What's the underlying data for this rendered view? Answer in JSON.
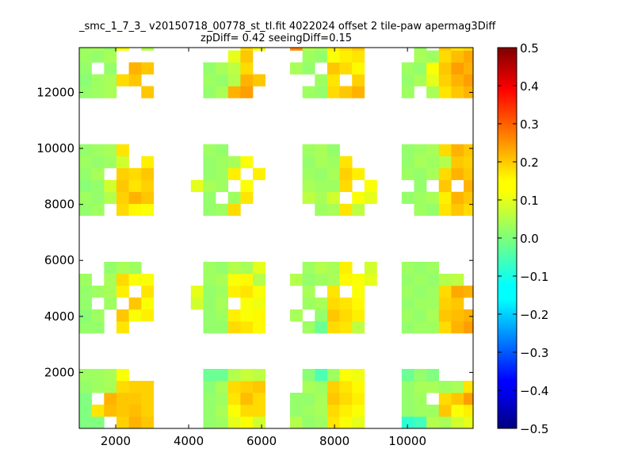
{
  "chart_data": {
    "type": "heatmap",
    "title_lines": [
      "_smc_1_7_3_ v20150718_00778_st_tl.fit 4022024 offset 2 tile-paw apermag3Diff",
      "zpDiff= 0.42 seeingDiff=0.15"
    ],
    "xlim": [
      1000,
      11800
    ],
    "ylim": [
      0,
      13600
    ],
    "x_ticks": [
      2000,
      4000,
      6000,
      8000,
      10000
    ],
    "y_ticks": [
      2000,
      4000,
      6000,
      8000,
      10000,
      12000
    ],
    "colorbar": {
      "range": [
        -0.5,
        0.5
      ],
      "colormap": "jet",
      "ticks": [
        -0.5,
        -0.4,
        -0.3,
        -0.2,
        -0.1,
        0.0,
        0.1,
        0.2,
        0.3,
        0.4,
        0.5
      ],
      "tick_labels": [
        "−0.5",
        "−0.4",
        "−0.3",
        "−0.2",
        "−0.1",
        "0.0",
        "0.1",
        "0.2",
        "0.3",
        "0.4",
        "0.5"
      ]
    },
    "cell_width": 340,
    "cell_height": 425,
    "grid": false,
    "blocks": [
      {
        "x0": 1000,
        "y0": 0,
        "cols": 6,
        "rows": 5,
        "values": [
          [
            0.0,
            0.0,
            null,
            0.17,
            0.2,
            0.18
          ],
          [
            0.0,
            0.15,
            0.19,
            0.18,
            0.19,
            0.17
          ],
          [
            0.0,
            null,
            0.2,
            0.18,
            0.18,
            0.17
          ],
          [
            0.02,
            0.03,
            0.04,
            0.16,
            0.17,
            0.17
          ],
          [
            0.03,
            0.03,
            0.04,
            0.12,
            null,
            null
          ]
        ]
      },
      {
        "x0": 4060,
        "y0": 0,
        "cols": 6,
        "rows": 5,
        "values": [
          [
            null,
            0.02,
            0.03,
            0.1,
            0.12,
            0.08
          ],
          [
            null,
            0.02,
            0.04,
            0.12,
            0.16,
            0.16
          ],
          [
            null,
            0.02,
            0.03,
            0.15,
            0.19,
            0.16
          ],
          [
            null,
            0.01,
            0.04,
            0.16,
            0.17,
            0.18
          ],
          [
            null,
            -0.02,
            -0.02,
            0.05,
            0.07,
            0.06
          ]
        ]
      },
      {
        "x0": 6780,
        "y0": 0,
        "cols": 6,
        "rows": 5,
        "values": [
          [
            0.05,
            0.02,
            0.03,
            0.15,
            0.12,
            0.1
          ],
          [
            0.02,
            0.03,
            0.04,
            0.16,
            0.14,
            0.12
          ],
          [
            0.02,
            0.02,
            0.04,
            0.18,
            0.16,
            0.14
          ],
          [
            null,
            0.04,
            0.03,
            0.17,
            0.15,
            0.13
          ],
          [
            null,
            0.01,
            -0.05,
            0.03,
            0.12,
            0.11
          ]
        ]
      },
      {
        "x0": 9840,
        "y0": 0,
        "cols": 6,
        "rows": 5,
        "values": [
          [
            -0.08,
            -0.06,
            0.05,
            0.04,
            0.08,
            0.1
          ],
          [
            0.02,
            0.03,
            0.03,
            0.18,
            0.12,
            0.14
          ],
          [
            0.02,
            0.03,
            null,
            0.16,
            0.18,
            0.22
          ],
          [
            0.02,
            0.04,
            0.04,
            0.03,
            0.04,
            0.15
          ],
          [
            -0.02,
            0.02,
            0.0,
            null,
            null,
            null
          ]
        ]
      },
      {
        "x0": 1000,
        "y0": 3400,
        "cols": 6,
        "rows": 6,
        "values": [
          [
            0.02,
            0.02,
            null,
            0.15,
            null,
            null
          ],
          [
            0.01,
            0.03,
            null,
            0.18,
            0.12,
            0.14
          ],
          [
            0.02,
            null,
            0.03,
            null,
            0.18,
            0.12
          ],
          [
            0.02,
            0.03,
            0.04,
            0.14,
            null,
            0.15
          ],
          [
            0.03,
            null,
            0.04,
            0.16,
            0.12,
            0.12
          ],
          [
            null,
            null,
            0.02,
            0.04,
            0.03,
            null
          ]
        ]
      },
      {
        "x0": 3720,
        "y0": 3400,
        "cols": 7,
        "rows": 6,
        "values": [
          [
            null,
            null,
            0.02,
            0.02,
            0.16,
            0.15,
            0.13
          ],
          [
            null,
            null,
            0.02,
            0.03,
            0.14,
            0.12,
            0.13
          ],
          [
            null,
            0.08,
            0.02,
            0.04,
            null,
            0.12,
            0.11
          ],
          [
            null,
            0.1,
            0.02,
            0.03,
            0.14,
            0.15,
            0.12
          ],
          [
            null,
            null,
            0.03,
            0.04,
            0.12,
            0.13,
            0.05
          ],
          [
            null,
            null,
            0.03,
            0.02,
            0.05,
            0.04,
            0.1
          ]
        ]
      },
      {
        "x0": 6780,
        "y0": 3400,
        "cols": 7,
        "rows": 6,
        "values": [
          [
            null,
            0.03,
            -0.02,
            0.16,
            0.15,
            0.06,
            null
          ],
          [
            0.04,
            null,
            0.02,
            0.18,
            0.16,
            0.14,
            null
          ],
          [
            null,
            0.03,
            0.04,
            0.16,
            0.15,
            0.13,
            null
          ],
          [
            null,
            0.04,
            null,
            0.15,
            null,
            0.12,
            null
          ],
          [
            0.05,
            0.02,
            0.03,
            0.04,
            0.13,
            0.12,
            0.1
          ],
          [
            null,
            0.03,
            0.05,
            0.04,
            0.14,
            null,
            0.08
          ]
        ]
      },
      {
        "x0": 9840,
        "y0": 3400,
        "cols": 6,
        "rows": 6,
        "values": [
          [
            0.02,
            0.03,
            0.03,
            0.16,
            0.2,
            0.22
          ],
          [
            0.03,
            0.02,
            0.04,
            0.18,
            0.19,
            0.2
          ],
          [
            0.02,
            0.03,
            0.03,
            0.17,
            0.18,
            null
          ],
          [
            0.03,
            0.02,
            0.03,
            0.16,
            0.21,
            0.2
          ],
          [
            0.02,
            0.03,
            0.02,
            0.05,
            0.06,
            null
          ],
          [
            0.03,
            0.02,
            0.03,
            null,
            null,
            null
          ]
        ]
      },
      {
        "x0": 1000,
        "y0": 7600,
        "cols": 6,
        "rows": 6,
        "values": [
          [
            0.02,
            0.03,
            null,
            0.16,
            0.13,
            0.12
          ],
          [
            0.03,
            0.02,
            0.05,
            0.17,
            0.2,
            0.18
          ],
          [
            0.01,
            0.02,
            0.08,
            0.18,
            0.15,
            0.17
          ],
          [
            0.02,
            0.04,
            null,
            0.17,
            0.16,
            0.18
          ],
          [
            0.03,
            0.02,
            0.03,
            0.08,
            null,
            0.14
          ],
          [
            0.02,
            0.03,
            0.04,
            0.15,
            null,
            null
          ]
        ]
      },
      {
        "x0": 3720,
        "y0": 7600,
        "cols": 7,
        "rows": 6,
        "values": [
          [
            null,
            null,
            0.02,
            0.03,
            0.16,
            null,
            null
          ],
          [
            null,
            null,
            0.02,
            null,
            0.03,
            0.15,
            null
          ],
          [
            null,
            0.1,
            0.04,
            0.03,
            null,
            0.12,
            null
          ],
          [
            null,
            null,
            0.02,
            0.03,
            0.14,
            null,
            0.14
          ],
          [
            null,
            null,
            0.02,
            0.03,
            0.04,
            0.12,
            null
          ],
          [
            null,
            null,
            0.03,
            0.02,
            null,
            null,
            null
          ]
        ]
      },
      {
        "x0": 6780,
        "y0": 7600,
        "cols": 7,
        "rows": 6,
        "values": [
          [
            null,
            null,
            0.03,
            0.04,
            0.15,
            0.06,
            null
          ],
          [
            null,
            0.06,
            0.04,
            0.08,
            null,
            0.12,
            0.1
          ],
          [
            null,
            0.04,
            0.03,
            0.03,
            0.16,
            null,
            0.12
          ],
          [
            null,
            0.03,
            0.02,
            0.04,
            0.17,
            0.14,
            null
          ],
          [
            null,
            0.02,
            0.04,
            0.03,
            0.15,
            null,
            null
          ],
          [
            null,
            0.03,
            0.04,
            0.02,
            null,
            null,
            null
          ]
        ]
      },
      {
        "x0": 9840,
        "y0": 7600,
        "cols": 6,
        "rows": 6,
        "values": [
          [
            null,
            0.03,
            0.02,
            0.15,
            0.18,
            0.16
          ],
          [
            0.02,
            0.03,
            0.04,
            0.14,
            0.2,
            0.18
          ],
          [
            null,
            0.02,
            null,
            0.18,
            null,
            0.2
          ],
          [
            0.03,
            0.02,
            0.04,
            0.16,
            0.2,
            0.18
          ],
          [
            0.02,
            0.04,
            0.03,
            0.05,
            0.18,
            0.17
          ],
          [
            0.02,
            0.03,
            0.04,
            0.16,
            0.2,
            0.18
          ]
        ]
      },
      {
        "x0": 1000,
        "y0": 11800,
        "cols": 6,
        "rows": 5,
        "values": [
          [
            0.02,
            0.03,
            0.04,
            null,
            null,
            0.18
          ],
          [
            0.01,
            0.03,
            0.04,
            0.16,
            0.18,
            null
          ],
          [
            0.02,
            null,
            0.02,
            null,
            0.2,
            0.18
          ],
          [
            0.03,
            0.02,
            0.04,
            null,
            null,
            null
          ],
          [
            0.03,
            0.04,
            0.02,
            0.12,
            null,
            0.05
          ]
        ]
      },
      {
        "x0": 4060,
        "y0": 11800,
        "cols": 6,
        "rows": 5,
        "values": [
          [
            null,
            0.02,
            0.04,
            0.2,
            0.22,
            null
          ],
          [
            null,
            0.03,
            0.02,
            0.05,
            0.2,
            0.18
          ],
          [
            null,
            0.02,
            0.04,
            0.06,
            0.16,
            null
          ],
          [
            null,
            null,
            null,
            0.1,
            0.18,
            null
          ],
          [
            null,
            null,
            null,
            null,
            0.16,
            0.12
          ]
        ]
      },
      {
        "x0": 6780,
        "y0": 11800,
        "cols": 7,
        "rows": 5,
        "values": [
          [
            null,
            0.03,
            0.02,
            0.16,
            0.18,
            0.2,
            null
          ],
          [
            null,
            null,
            0.03,
            0.15,
            null,
            0.17,
            null
          ],
          [
            0.04,
            0.02,
            null,
            0.18,
            0.16,
            0.13,
            null
          ],
          [
            null,
            0.03,
            0.02,
            0.12,
            0.14,
            0.15,
            null
          ],
          [
            0.24,
            0.05,
            0.04,
            0.14,
            0.16,
            0.18,
            null
          ]
        ]
      },
      {
        "x0": 9840,
        "y0": 11800,
        "cols": 6,
        "rows": 5,
        "values": [
          [
            0.03,
            null,
            0.04,
            0.15,
            0.18,
            0.2
          ],
          [
            0.02,
            0.04,
            0.1,
            0.17,
            0.2,
            0.22
          ],
          [
            0.03,
            0.02,
            0.12,
            0.18,
            0.22,
            0.2
          ],
          [
            null,
            0.04,
            0.03,
            0.16,
            0.19,
            0.21
          ],
          [
            null,
            0.03,
            null,
            0.18,
            0.15,
            0.16
          ]
        ]
      }
    ]
  }
}
